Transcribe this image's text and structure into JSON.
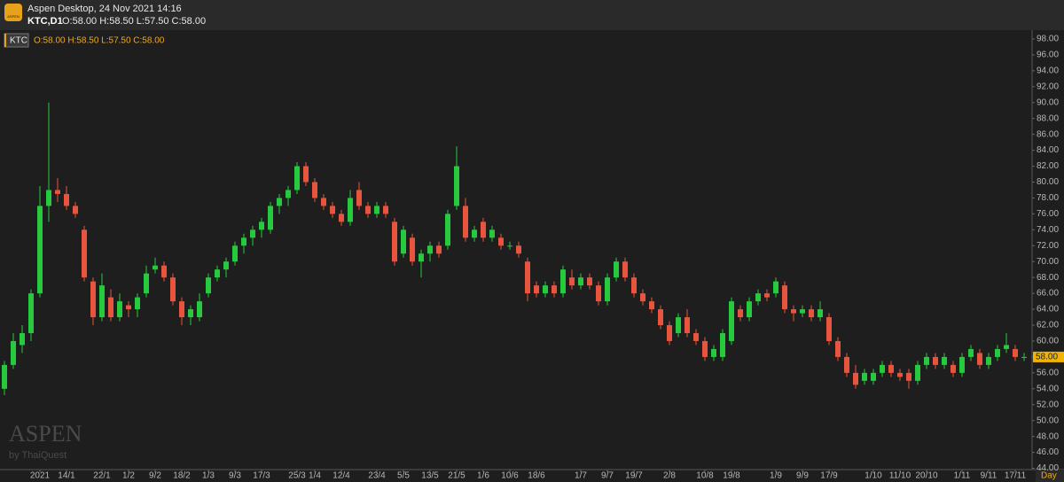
{
  "window": {
    "title": "Aspen Desktop, 24 Nov 2021 14:16",
    "symbol": "KTC,D1"
  },
  "watermark": {
    "brand": "ASPEN",
    "by": "by ThaiQuest"
  },
  "chart_data": {
    "type": "candlestick",
    "symbol": "KTC",
    "ohlc_text": "O:58.00 H:58.50 L:57.50 C:58.00",
    "timeframe": "Day",
    "up_color": "#27c93f",
    "down_color": "#e8553f",
    "categories": [
      null,
      null,
      null,
      null,
      "2021",
      null,
      null,
      "14/1",
      null,
      null,
      null,
      "22/1",
      null,
      null,
      "1/2",
      null,
      null,
      "9/2",
      null,
      null,
      "18/2",
      null,
      null,
      "1/3",
      null,
      null,
      "9/3",
      null,
      null,
      "17/3",
      null,
      null,
      null,
      "25/3",
      null,
      "1/4",
      null,
      null,
      "12/4",
      null,
      null,
      null,
      "23/4",
      null,
      null,
      "5/5",
      null,
      null,
      "13/5",
      null,
      null,
      "21/5",
      null,
      null,
      "1/6",
      null,
      null,
      "10/6",
      null,
      null,
      "18/6",
      null,
      null,
      null,
      null,
      "1/7",
      null,
      null,
      "9/7",
      null,
      null,
      "19/7",
      null,
      null,
      null,
      "2/8",
      null,
      null,
      null,
      "10/8",
      null,
      null,
      "19/8",
      null,
      null,
      null,
      null,
      "1/9",
      null,
      null,
      "9/9",
      null,
      null,
      "17/9",
      null,
      null,
      null,
      null,
      "1/10",
      null,
      null,
      "11/10",
      null,
      null,
      "20/10",
      null,
      null,
      null,
      "1/11",
      null,
      null,
      "9/11",
      null,
      null,
      "17/11",
      null
    ],
    "ohlc": [
      [
        54,
        57.5,
        53.2,
        57
      ],
      [
        57,
        61,
        56.5,
        60
      ],
      [
        59.5,
        62,
        58.5,
        61
      ],
      [
        61,
        66.5,
        60,
        66
      ],
      [
        66,
        79.5,
        65.5,
        77
      ],
      [
        77,
        90,
        75,
        79
      ],
      [
        79,
        80.5,
        77.5,
        78.5
      ],
      [
        78.5,
        79.5,
        76.5,
        77
      ],
      [
        77,
        77.5,
        75.5,
        76
      ],
      [
        74,
        74.5,
        67.5,
        68
      ],
      [
        67.5,
        68,
        62,
        63
      ],
      [
        63,
        68.5,
        62.5,
        67
      ],
      [
        65.5,
        66.5,
        62.5,
        63
      ],
      [
        63,
        66,
        62.5,
        65
      ],
      [
        64.5,
        65,
        63,
        64
      ],
      [
        64,
        66,
        63,
        65.5
      ],
      [
        66,
        69.5,
        65.5,
        68.5
      ],
      [
        69,
        70.5,
        68.5,
        69.5
      ],
      [
        69.5,
        70,
        67.5,
        68
      ],
      [
        68,
        68.5,
        64.5,
        65
      ],
      [
        65,
        65.5,
        62,
        63
      ],
      [
        63,
        64.5,
        62,
        64
      ],
      [
        63,
        66,
        62.5,
        65
      ],
      [
        66,
        68.5,
        65.5,
        68
      ],
      [
        68,
        69.5,
        67.5,
        69
      ],
      [
        69,
        70.5,
        68,
        70
      ],
      [
        70,
        72.5,
        69.5,
        72
      ],
      [
        72,
        73.5,
        71,
        73
      ],
      [
        73,
        74.5,
        72,
        74
      ],
      [
        74,
        75.5,
        73,
        75
      ],
      [
        74,
        77.5,
        73.5,
        77
      ],
      [
        77,
        78.5,
        76,
        78
      ],
      [
        78,
        79.5,
        77,
        79
      ],
      [
        79,
        82.5,
        78.5,
        82
      ],
      [
        82,
        82.5,
        79.5,
        80
      ],
      [
        80,
        80.5,
        77.5,
        78
      ],
      [
        78,
        78.5,
        76.5,
        77
      ],
      [
        77,
        77.5,
        75.5,
        76
      ],
      [
        76,
        76.5,
        74.5,
        75
      ],
      [
        75,
        79,
        74.5,
        78
      ],
      [
        79,
        80,
        76.5,
        77
      ],
      [
        77,
        77.5,
        75.5,
        76
      ],
      [
        76,
        77.5,
        75.5,
        77
      ],
      [
        77,
        77.5,
        75.5,
        76
      ],
      [
        75,
        75.5,
        69.5,
        70
      ],
      [
        71,
        74.5,
        70.5,
        74
      ],
      [
        73,
        73.5,
        69.5,
        70
      ],
      [
        70,
        71.5,
        68,
        71
      ],
      [
        71,
        72.5,
        70,
        72
      ],
      [
        72,
        72.5,
        70.5,
        71
      ],
      [
        72,
        76.5,
        71.5,
        76
      ],
      [
        77,
        84.5,
        76.5,
        82
      ],
      [
        77,
        78,
        72.5,
        73
      ],
      [
        73,
        74.5,
        72.5,
        74
      ],
      [
        75,
        75.5,
        72.5,
        73
      ],
      [
        73,
        74.5,
        72.5,
        74
      ],
      [
        73,
        73.5,
        71.5,
        72
      ],
      [
        72,
        72.5,
        71.5,
        72
      ],
      [
        72,
        72.5,
        70.5,
        71
      ],
      [
        70,
        70.5,
        65,
        66
      ],
      [
        67,
        67.5,
        65.5,
        66
      ],
      [
        66,
        67.5,
        65.5,
        67
      ],
      [
        67,
        67.5,
        65.5,
        66
      ],
      [
        66,
        69.5,
        65.5,
        69
      ],
      [
        68,
        69,
        66.5,
        67
      ],
      [
        67,
        68.5,
        66.5,
        68
      ],
      [
        68,
        68.5,
        66.5,
        67
      ],
      [
        67,
        67.5,
        64.5,
        65
      ],
      [
        65,
        68.5,
        64.5,
        68
      ],
      [
        68,
        70.5,
        67.5,
        70
      ],
      [
        70,
        70.5,
        67.5,
        68
      ],
      [
        68,
        68.5,
        65.5,
        66
      ],
      [
        66,
        66.5,
        64.5,
        65
      ],
      [
        65,
        65.5,
        63.5,
        64
      ],
      [
        64,
        64.5,
        61.5,
        62
      ],
      [
        62,
        62.5,
        59.5,
        60
      ],
      [
        61,
        63.5,
        60.5,
        63
      ],
      [
        63,
        64,
        60.5,
        61
      ],
      [
        61,
        61.5,
        59.5,
        60
      ],
      [
        60,
        60.5,
        57.5,
        58
      ],
      [
        58,
        59.5,
        57.5,
        59
      ],
      [
        58,
        61.5,
        57.5,
        61
      ],
      [
        60,
        65.5,
        59.5,
        65
      ],
      [
        64,
        64.5,
        62.5,
        63
      ],
      [
        63,
        65.5,
        62.5,
        65
      ],
      [
        65,
        66.5,
        64.5,
        66
      ],
      [
        66,
        66.5,
        65,
        65.5
      ],
      [
        66,
        68,
        65.5,
        67.5
      ],
      [
        67,
        67.5,
        63.5,
        64
      ],
      [
        64,
        64.5,
        62.5,
        63.5
      ],
      [
        63.5,
        64.5,
        63,
        64
      ],
      [
        64,
        64.5,
        62.5,
        63
      ],
      [
        63,
        65,
        62.5,
        64
      ],
      [
        63,
        63.5,
        59.5,
        60
      ],
      [
        60,
        60.5,
        57.5,
        58
      ],
      [
        58,
        58.5,
        55.5,
        56
      ],
      [
        56,
        57,
        54,
        54.5
      ],
      [
        55,
        56.5,
        54.5,
        56
      ],
      [
        55,
        56.5,
        54.5,
        56
      ],
      [
        56,
        57.5,
        55.5,
        57
      ],
      [
        57,
        57.5,
        55.5,
        56
      ],
      [
        56,
        56.5,
        55,
        55.5
      ],
      [
        56,
        56.5,
        54,
        55
      ],
      [
        55,
        57.5,
        54.5,
        57
      ],
      [
        57,
        58.5,
        56.5,
        58
      ],
      [
        58,
        58.5,
        56.5,
        57
      ],
      [
        57,
        58.5,
        56.5,
        58
      ],
      [
        57,
        57.5,
        55.5,
        56
      ],
      [
        56,
        58.5,
        55.5,
        58
      ],
      [
        58,
        59.5,
        57.5,
        59
      ],
      [
        58.5,
        59,
        56.5,
        57
      ],
      [
        57,
        58.5,
        56.5,
        58
      ],
      [
        58,
        59.5,
        57.5,
        59
      ],
      [
        59,
        61,
        58.5,
        59.5
      ],
      [
        59,
        59.5,
        57.5,
        58
      ],
      [
        58,
        58.5,
        57.5,
        58
      ]
    ],
    "ylim": [
      43.5,
      99
    ],
    "yticks": [
      {
        "value": 44,
        "label": "44.00"
      },
      {
        "value": 46,
        "label": "46.00"
      },
      {
        "value": 48,
        "label": "48.00"
      },
      {
        "value": 50,
        "label": "50.00"
      },
      {
        "value": 52,
        "label": "52.00"
      },
      {
        "value": 54,
        "label": "54.00"
      },
      {
        "value": 56,
        "label": "56.00"
      },
      {
        "value": 58,
        "label": "58.00"
      },
      {
        "value": 60,
        "label": "60.00"
      },
      {
        "value": 62,
        "label": "62.00"
      },
      {
        "value": 64,
        "label": "64.00"
      },
      {
        "value": 66,
        "label": "66.00"
      },
      {
        "value": 68,
        "label": "68.00"
      },
      {
        "value": 70,
        "label": "70.00"
      },
      {
        "value": 72,
        "label": "72.00"
      },
      {
        "value": 74,
        "label": "74.00"
      },
      {
        "value": 76,
        "label": "76.00"
      },
      {
        "value": 78,
        "label": "78.00"
      },
      {
        "value": 80,
        "label": "80.00"
      },
      {
        "value": 82,
        "label": "82.00"
      },
      {
        "value": 84,
        "label": "84.00"
      },
      {
        "value": 86,
        "label": "86.00"
      },
      {
        "value": 88,
        "label": "88.00"
      },
      {
        "value": 90,
        "label": "90.00"
      },
      {
        "value": 92,
        "label": "92.00"
      },
      {
        "value": 94,
        "label": "94.00"
      },
      {
        "value": 96,
        "label": "96.00"
      },
      {
        "value": 98,
        "label": "98.00"
      }
    ],
    "last_price": {
      "value": 58,
      "label": "58.00"
    }
  }
}
